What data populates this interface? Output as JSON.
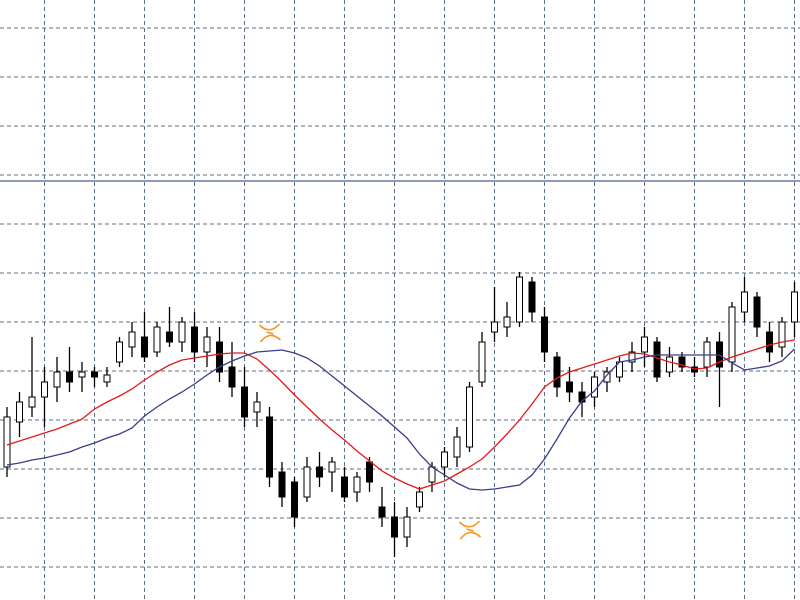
{
  "chart_data": {
    "type": "candlestick",
    "ylim": [
      -33,
      567
    ],
    "yticks": [
      0,
      49,
      98,
      147,
      196,
      245,
      294,
      343,
      392,
      441,
      490,
      539
    ],
    "grid": true,
    "grid_color": "#5a6f8a",
    "xgrid_start": 3,
    "xgrid_step": 4,
    "hline": {
      "value": 386,
      "color": "#6a7a9a"
    },
    "up_color": "#ffffff",
    "down_color": "#000000",
    "wick_color": "#000000",
    "open": [
      100,
      145,
      160,
      170,
      180,
      195,
      190,
      195,
      185,
      205,
      220,
      230,
      215,
      235,
      225,
      240,
      215,
      225,
      200,
      180,
      155,
      150,
      95,
      85,
      70,
      100,
      95,
      90,
      75,
      105,
      60,
      50,
      30,
      60,
      85,
      100,
      110,
      120,
      185,
      235,
      240,
      245,
      285,
      250,
      210,
      185,
      175,
      170,
      185,
      190,
      205,
      215,
      225,
      195,
      210,
      200,
      200,
      225,
      205,
      255,
      270,
      235,
      220,
      245
    ],
    "high": [
      160,
      175,
      230,
      200,
      210,
      220,
      205,
      200,
      200,
      230,
      245,
      255,
      245,
      260,
      250,
      255,
      240,
      240,
      225,
      200,
      175,
      160,
      105,
      90,
      110,
      115,
      110,
      100,
      95,
      110,
      80,
      65,
      60,
      80,
      105,
      120,
      140,
      185,
      235,
      280,
      265,
      295,
      290,
      260,
      215,
      200,
      185,
      195,
      200,
      210,
      225,
      240,
      230,
      220,
      215,
      210,
      230,
      235,
      265,
      290,
      275,
      245,
      250,
      285
    ],
    "low": [
      90,
      130,
      150,
      140,
      165,
      175,
      175,
      180,
      180,
      200,
      210,
      205,
      210,
      220,
      215,
      205,
      200,
      185,
      170,
      140,
      140,
      80,
      60,
      40,
      65,
      80,
      75,
      65,
      65,
      75,
      40,
      10,
      20,
      55,
      75,
      90,
      100,
      115,
      180,
      225,
      230,
      240,
      245,
      205,
      170,
      165,
      150,
      160,
      175,
      185,
      195,
      200,
      185,
      190,
      195,
      190,
      190,
      160,
      195,
      245,
      230,
      205,
      210,
      230
    ],
    "close": [
      150,
      165,
      170,
      185,
      195,
      185,
      195,
      190,
      192,
      225,
      235,
      210,
      240,
      225,
      245,
      215,
      230,
      195,
      180,
      150,
      165,
      90,
      70,
      50,
      100,
      90,
      105,
      70,
      90,
      85,
      50,
      30,
      50,
      75,
      100,
      115,
      130,
      180,
      225,
      245,
      250,
      290,
      255,
      215,
      180,
      175,
      165,
      190,
      195,
      205,
      215,
      230,
      190,
      210,
      200,
      195,
      225,
      200,
      260,
      275,
      240,
      215,
      245,
      275
    ],
    "moving_averages": [
      {
        "color": "#e41a1a",
        "values": [
          122,
          126,
          130,
          134,
          138,
          143,
          148,
          158,
          165,
          171,
          178,
          187,
          195,
          202,
          207,
          209,
          211,
          213,
          214,
          214,
          208,
          197,
          185,
          172,
          160,
          148,
          137,
          127,
          116,
          106,
          96,
          89,
          83,
          78,
          82,
          86,
          93,
          100,
          108,
          120,
          133,
          147,
          163,
          180,
          189,
          195,
          199,
          203,
          207,
          211,
          214,
          213,
          209,
          205,
          202,
          198,
          199,
          205,
          210,
          214,
          218,
          222,
          225,
          227
        ]
      },
      {
        "color": "#3c3c8c",
        "values": [
          102,
          104,
          107,
          109,
          112,
          115,
          120,
          124,
          129,
          133,
          139,
          151,
          160,
          168,
          175,
          183,
          192,
          200,
          206,
          211,
          215,
          216,
          217,
          214,
          209,
          201,
          191,
          181,
          171,
          161,
          151,
          140,
          129,
          113,
          100,
          92,
          84,
          78,
          77,
          78,
          80,
          82,
          92,
          108,
          128,
          149,
          166,
          176,
          192,
          205,
          207,
          210,
          212,
          212,
          212,
          212,
          212,
          212,
          204,
          197,
          199,
          201,
          206,
          218
        ]
      }
    ],
    "markers": {
      "color": "#f7931e",
      "index": [
        21,
        37
      ],
      "values": [
        234,
        37
      ]
    }
  }
}
